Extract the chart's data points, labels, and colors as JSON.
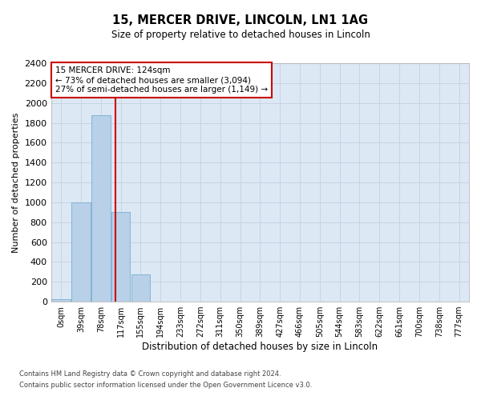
{
  "title": "15, MERCER DRIVE, LINCOLN, LN1 1AG",
  "subtitle": "Size of property relative to detached houses in Lincoln",
  "xlabel": "Distribution of detached houses by size in Lincoln",
  "ylabel": "Number of detached properties",
  "bar_color": "#b8d0e8",
  "bar_edge_color": "#7aaed0",
  "grid_color": "#c8d4e4",
  "background_color": "#dce8f4",
  "annotation_box_color": "#cc0000",
  "vline_color": "#cc0000",
  "vline_x": 2.72,
  "annotation_text": "15 MERCER DRIVE: 124sqm\n← 73% of detached houses are smaller (3,094)\n27% of semi-detached houses are larger (1,149) →",
  "categories": [
    "0sqm",
    "39sqm",
    "78sqm",
    "117sqm",
    "155sqm",
    "194sqm",
    "233sqm",
    "272sqm",
    "311sqm",
    "350sqm",
    "389sqm",
    "427sqm",
    "466sqm",
    "505sqm",
    "544sqm",
    "583sqm",
    "622sqm",
    "661sqm",
    "700sqm",
    "738sqm",
    "777sqm"
  ],
  "bar_heights": [
    28,
    1000,
    1880,
    900,
    275,
    0,
    0,
    0,
    0,
    0,
    0,
    0,
    0,
    0,
    0,
    0,
    0,
    0,
    0,
    0,
    0
  ],
  "ylim": [
    0,
    2400
  ],
  "yticks": [
    0,
    200,
    400,
    600,
    800,
    1000,
    1200,
    1400,
    1600,
    1800,
    2000,
    2200,
    2400
  ],
  "footnote1": "Contains HM Land Registry data © Crown copyright and database right 2024.",
  "footnote2": "Contains public sector information licensed under the Open Government Licence v3.0."
}
